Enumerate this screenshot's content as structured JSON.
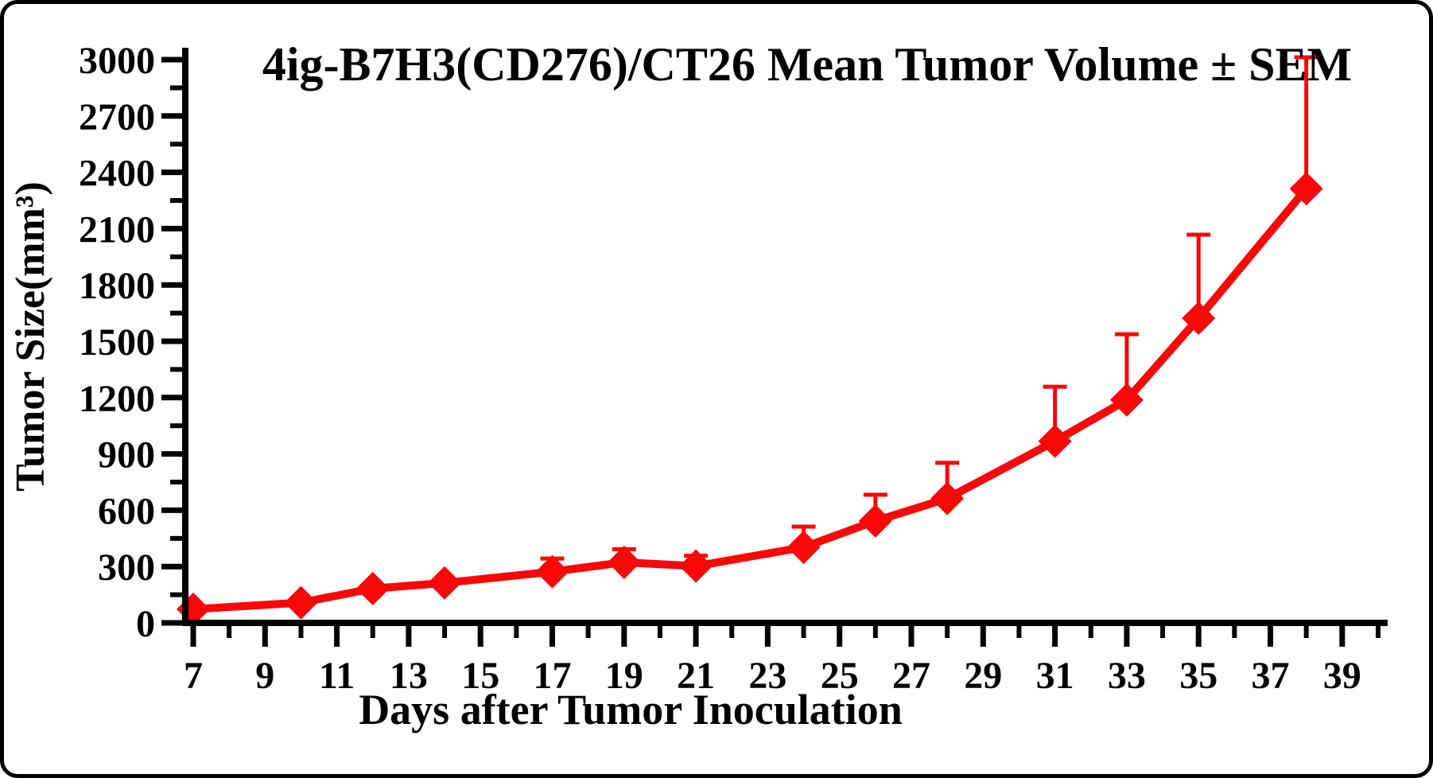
{
  "chart_data": {
    "type": "line",
    "title": "4ig-B7H3(CD276)/CT26 Mean Tumor Volume ± SEM",
    "xlabel": "Days after Tumor Inoculation",
    "ylabel": "Tumor Size(mm³)",
    "x": [
      7,
      10,
      12,
      14,
      17,
      19,
      21,
      24,
      26,
      28,
      31,
      33,
      35,
      38
    ],
    "series": [
      {
        "name": "Mean tumor volume ± SEM",
        "values": [
          60,
          95,
          170,
          200,
          260,
          310,
          290,
          390,
          530,
          650,
          955,
          1175,
          1610,
          2300
        ],
        "sem_upper": [
          0,
          0,
          0,
          0,
          70,
          70,
          55,
          110,
          140,
          190,
          290,
          350,
          445,
          700
        ]
      }
    ],
    "x_axis": {
      "min": 7,
      "max": 40,
      "major_ticks": [
        7,
        9,
        11,
        13,
        15,
        17,
        19,
        21,
        23,
        25,
        27,
        29,
        31,
        33,
        35,
        37,
        39
      ],
      "minor_ticks": [
        8,
        10,
        12,
        14,
        16,
        18,
        20,
        22,
        24,
        26,
        28,
        30,
        32,
        34,
        36,
        38,
        40
      ]
    },
    "y_axis": {
      "min": 0,
      "max": 3000,
      "major_ticks": [
        0,
        300,
        600,
        900,
        1200,
        1500,
        1800,
        2100,
        2400,
        2700,
        3000
      ],
      "minor_ticks": [
        150,
        450,
        750,
        1050,
        1350,
        1650,
        1950,
        2250,
        2550,
        2850
      ]
    },
    "error_bars": "upper-only-with-caps",
    "marker": "diamond",
    "grid": false,
    "legend_position": "none",
    "colors": {
      "series": "#fb0707",
      "axis": "#000000",
      "background": "#ffffff"
    }
  }
}
